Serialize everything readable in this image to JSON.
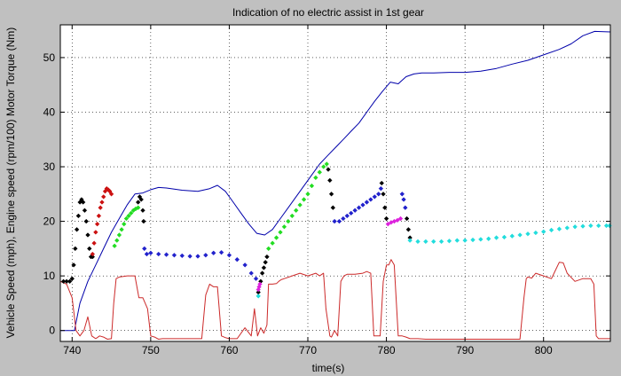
{
  "chart_data": {
    "type": "line",
    "title": "Indication of no electric assist in 1st gear",
    "xlabel": "time(s)",
    "ylabel": "Vehicle Speed (mph), Engine speed (rpm/100) Motor Torque (Nm)",
    "xlim": [
      738.5,
      808.5
    ],
    "ylim": [
      -2,
      56
    ],
    "xticks": [
      740,
      750,
      760,
      770,
      780,
      790,
      800
    ],
    "yticks": [
      0,
      10,
      20,
      30,
      40,
      50
    ],
    "grid": true,
    "legend": "none",
    "series": [
      {
        "style": "line",
        "color": "#0000aa",
        "x": [
          738.5,
          740.3,
          741.0,
          742.0,
          743.0,
          744.0,
          745.0,
          746.0,
          747.0,
          748.0,
          749.0,
          750.0,
          751.0,
          752.0,
          754.0,
          756.0,
          757.5,
          758.5,
          759.5,
          760.5,
          761.5,
          762.5,
          763.5,
          764.5,
          765.5,
          766.5,
          767.5,
          768.5,
          769.5,
          770.5,
          771.5,
          772.5,
          773.5,
          774.5,
          775.5,
          776.5,
          777.5,
          778.5,
          779.5,
          780.5,
          781.5,
          782.5,
          783.5,
          784.5,
          786.0,
          788.0,
          790.0,
          792.0,
          794.0,
          796.0,
          798.0,
          800.0,
          802.0,
          803.5,
          805.0,
          806.5,
          808.5
        ],
        "y": [
          0,
          0,
          5,
          9,
          12,
          15,
          18,
          20.5,
          23,
          25,
          25.2,
          25.8,
          26.2,
          26.1,
          25.7,
          25.5,
          26,
          26.6,
          25.5,
          23.5,
          21.5,
          19.5,
          17.8,
          17.5,
          18.5,
          20.5,
          22.5,
          24.5,
          26.5,
          28.5,
          30.5,
          32,
          33.5,
          35,
          36.5,
          38,
          40,
          42,
          43.8,
          45.5,
          45.2,
          46.5,
          47,
          47.2,
          47.2,
          47.3,
          47.3,
          47.5,
          48,
          48.8,
          49.5,
          50.5,
          51.5,
          52.5,
          54,
          54.8,
          54.7
        ]
      },
      {
        "style": "line",
        "color": "#cc2a2a",
        "x": [
          738.5,
          739.3,
          740.0,
          740.5,
          741.0,
          741.5,
          742.0,
          742.5,
          743.0,
          743.5,
          744.0,
          744.5,
          745.0,
          745.3,
          745.6,
          746.0,
          747.0,
          748.0,
          748.5,
          749.0,
          749.6,
          750.0,
          750.5,
          751.0,
          751.5,
          752.0,
          753.0,
          754.0,
          755.0,
          755.5,
          756.0,
          756.5,
          757.0,
          757.5,
          758.0,
          758.5,
          759.0,
          759.5,
          760.0,
          761.0,
          762.0,
          762.8,
          763.2,
          763.6,
          764.0,
          764.4,
          764.8,
          765.0,
          765.5,
          766.0,
          766.3,
          766.6,
          767.0,
          768.0,
          769.0,
          770.0,
          771.0,
          771.5,
          772.0,
          772.3,
          772.8,
          773.0,
          773.4,
          773.8,
          774.2,
          774.6,
          775.0,
          776.0,
          777.0,
          777.5,
          778.0,
          778.4,
          778.8,
          779.2,
          779.6,
          780.0,
          780.3,
          780.6,
          781.0,
          781.5,
          782.0,
          782.5,
          783.0,
          784.0,
          785.0,
          787.0,
          789.0,
          791.0,
          793.0,
          795.0,
          797.0,
          797.5,
          797.8,
          798.0,
          798.5,
          799.0,
          800.0,
          801.0,
          801.5,
          802.0,
          802.5,
          803.0,
          804.0,
          805.0,
          806.0,
          806.4,
          806.7,
          807.0,
          808.0,
          808.5
        ],
        "y": [
          9,
          8.5,
          6,
          0,
          -1,
          0,
          2.5,
          -1,
          -1.5,
          -1,
          -1.2,
          -1.6,
          -1.5,
          5,
          9.5,
          9.8,
          10,
          10,
          6,
          6,
          4,
          -1,
          -1.2,
          -1.6,
          -1.5,
          -1.5,
          -1.5,
          -1.5,
          -1.5,
          -1.5,
          -1.5,
          -1.5,
          6.5,
          8.5,
          8,
          8,
          -1,
          -1.3,
          -1.5,
          -1.5,
          0.5,
          -1,
          4,
          -1,
          0.5,
          -0.5,
          1,
          8.5,
          8.5,
          8.6,
          9,
          9.3,
          9.5,
          10,
          10.5,
          10,
          10.5,
          10,
          10.5,
          4,
          -1,
          -1.2,
          0,
          -1,
          9,
          10,
          10.3,
          10.3,
          10.5,
          10.8,
          10.5,
          -1,
          -1,
          -1,
          9,
          12,
          12,
          13,
          12,
          -1,
          -1,
          -1.2,
          -1.5,
          -1.5,
          -1.6,
          -1.6,
          -1.6,
          -1.6,
          -1.6,
          -1.6,
          -1.6,
          6,
          9.5,
          9.8,
          9.6,
          10.5,
          10,
          9.5,
          11,
          12.5,
          12.4,
          10.5,
          9,
          9.5,
          9.5,
          8.5,
          -1,
          -1.5,
          -1.5,
          -1.5
        ]
      },
      {
        "style": "markers",
        "color": "#000000",
        "x": [
          738.9,
          739.3,
          739.7,
          740.0,
          740.2,
          740.4,
          740.6,
          740.8,
          741.0,
          741.2,
          741.4,
          741.6,
          741.8,
          742.0,
          742.2,
          742.4,
          742.6
        ],
        "y": [
          9,
          9,
          9,
          9.5,
          12,
          15,
          18.5,
          21,
          23.5,
          24,
          23.5,
          22,
          20,
          17.5,
          15,
          13.5,
          13.5
        ]
      },
      {
        "style": "markers",
        "color": "#cc1111",
        "x": [
          742.6,
          742.8,
          743.0,
          743.2,
          743.4,
          743.6,
          743.8,
          744.0,
          744.2,
          744.4,
          744.6,
          744.8,
          745.0
        ],
        "y": [
          14,
          16,
          18,
          19.5,
          21,
          22.5,
          23.5,
          24.5,
          25.5,
          26,
          25.8,
          25.5,
          25
        ]
      },
      {
        "style": "markers",
        "color": "#22dd22",
        "x": [
          745.4,
          745.7,
          746.0,
          746.3,
          746.6,
          746.9,
          747.2,
          747.5,
          747.8,
          748.1,
          748.4
        ],
        "y": [
          15.5,
          16.5,
          17.5,
          18.5,
          19.5,
          20.5,
          21,
          21.5,
          22,
          22.3,
          22.5
        ]
      },
      {
        "style": "markers",
        "color": "#000000",
        "x": [
          748.4,
          748.6,
          748.8,
          749.0,
          749.1
        ],
        "y": [
          23.5,
          24.5,
          24,
          22,
          20
        ]
      },
      {
        "style": "markers",
        "color": "#2222cc",
        "x": [
          749.2,
          749.5,
          750.0,
          751.0,
          752.0,
          753.0,
          754.0,
          755.0,
          756.0,
          757.0,
          758.0,
          759.0,
          760.0,
          761.0,
          762.0,
          762.8,
          763.4
        ],
        "y": [
          15,
          14,
          14.2,
          14,
          13.9,
          13.8,
          13.7,
          13.6,
          13.6,
          13.8,
          14.2,
          14.3,
          13.8,
          13,
          12,
          10.5,
          9.5
        ]
      },
      {
        "style": "markers",
        "color": "#000000",
        "x": [
          763.7,
          764.0,
          764.2,
          764.4,
          764.6,
          764.8
        ],
        "y": [
          7,
          9,
          10.5,
          11.5,
          12.5,
          13.5
        ]
      },
      {
        "style": "markers",
        "color": "#dd22dd",
        "x": [
          763.7,
          763.8,
          763.9
        ],
        "y": [
          7.5,
          8,
          8.5
        ]
      },
      {
        "style": "markers",
        "color": "#22dddd",
        "x": [
          763.7
        ],
        "y": [
          6.3
        ]
      },
      {
        "style": "markers",
        "color": "#22dd22",
        "x": [
          765.0,
          765.5,
          766.0,
          766.5,
          767.0,
          767.5,
          768.0,
          768.5,
          769.0,
          769.5,
          770.0,
          770.5,
          771.0,
          771.5,
          772.0,
          772.4
        ],
        "y": [
          15,
          16,
          17,
          18,
          19,
          20,
          21,
          22,
          23,
          24,
          25,
          26.5,
          28,
          29,
          30,
          30.5
        ]
      },
      {
        "style": "markers",
        "color": "#000000",
        "x": [
          772.6,
          772.8,
          773.0,
          773.2
        ],
        "y": [
          29.5,
          27.5,
          25,
          22.5
        ]
      },
      {
        "style": "markers",
        "color": "#2222cc",
        "x": [
          773.4,
          774.0,
          774.5,
          775.0,
          775.5,
          776.0,
          776.5,
          777.0,
          777.5,
          778.0,
          778.5,
          779.0,
          779.3
        ],
        "y": [
          20,
          20,
          20.5,
          21,
          21.5,
          22,
          22.5,
          23,
          23.5,
          24,
          24.5,
          25,
          26
        ]
      },
      {
        "style": "markers",
        "color": "#000000",
        "x": [
          779.4,
          779.6,
          779.8,
          780.0
        ],
        "y": [
          27,
          25,
          22.5,
          20.5
        ]
      },
      {
        "style": "markers",
        "color": "#dd22dd",
        "x": [
          780.2,
          780.6,
          781.0,
          781.4,
          781.8
        ],
        "y": [
          19.5,
          19.8,
          20,
          20.2,
          20.5
        ]
      },
      {
        "style": "markers",
        "color": "#2222cc",
        "x": [
          782.0,
          782.2,
          782.4
        ],
        "y": [
          25,
          24,
          22.5
        ]
      },
      {
        "style": "markers",
        "color": "#000000",
        "x": [
          782.6,
          782.8,
          783.0
        ],
        "y": [
          20.5,
          18.5,
          17
        ]
      },
      {
        "style": "markers",
        "color": "#22dddd",
        "x": [
          783.0,
          784.0,
          785.0,
          786.0,
          787.0,
          788.0,
          789.0,
          790.0,
          791.0,
          792.0,
          793.0,
          794.0,
          795.0,
          796.0,
          797.0,
          798.0,
          799.0,
          800.0,
          801.0,
          802.0,
          803.0,
          804.0,
          805.0,
          806.0,
          807.0,
          808.0,
          808.4
        ],
        "y": [
          16.5,
          16.3,
          16.3,
          16.3,
          16.3,
          16.4,
          16.5,
          16.5,
          16.6,
          16.7,
          16.8,
          17,
          17.1,
          17.3,
          17.5,
          17.7,
          17.9,
          18.1,
          18.4,
          18.6,
          18.8,
          19,
          19.1,
          19.2,
          19.2,
          19.2,
          19.2
        ]
      }
    ]
  }
}
